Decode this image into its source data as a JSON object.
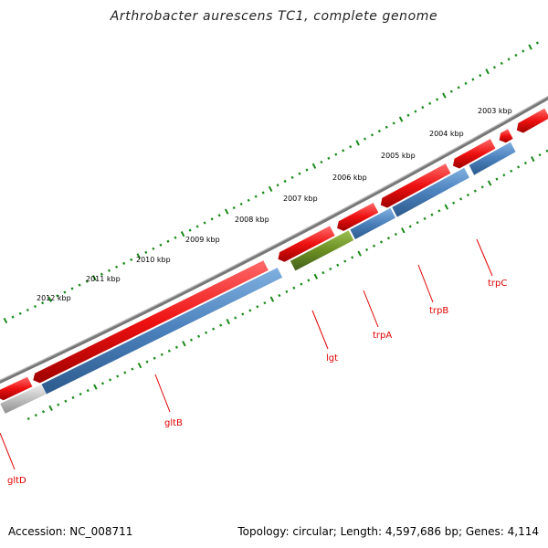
{
  "title": "Arthrobacter aurescens TC1, complete genome",
  "accession_text": "Accession: NC_008711",
  "summary_text": "Topology: circular; Length: 4,597,686 bp; Genes: 4,114",
  "colors": {
    "background_ring": "#777777",
    "forward_gene": "#ee1111",
    "reverse_gene": "#4a80bb",
    "rna_gene": "#6b8e23",
    "tick": "#1a8a1a",
    "label": "#e00000"
  },
  "kbp_labels": [
    "2003 kbp",
    "2004 kbp",
    "2005 kbp",
    "2006 kbp",
    "2007 kbp",
    "2008 kbp",
    "2009 kbp",
    "2010 kbp",
    "2011 kbp",
    "2012 kbp"
  ],
  "gene_labels": [
    "gltD",
    "gltB",
    "lgt",
    "trpA",
    "trpB",
    "trpC"
  ]
}
